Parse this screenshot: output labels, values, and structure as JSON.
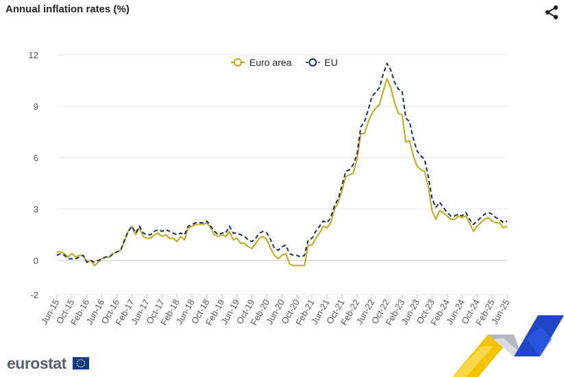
{
  "header": {
    "title": "Annual inflation rates (%)",
    "share_icon": "share-icon"
  },
  "footer": {
    "logo_text": "eurostat",
    "flag_icon": "eu-flag-icon",
    "decoration": "eurostat-ribbon-graphic"
  },
  "colors": {
    "euro_area": "#c7a411",
    "eu": "#0e2f6b",
    "grid": "#e6e6e6",
    "text": "#555555"
  },
  "chart_data": {
    "type": "line",
    "title": "Annual inflation rates (%)",
    "xlabel": "",
    "ylabel": "",
    "ylim": [
      -2,
      12
    ],
    "yticks": [
      -2,
      0,
      3,
      6,
      9,
      12
    ],
    "grid": true,
    "legend_position": "top-center",
    "x": [
      "Jun-15",
      "Jul-15",
      "Aug-15",
      "Sep-15",
      "Oct-15",
      "Nov-15",
      "Dec-15",
      "Jan-16",
      "Feb-16",
      "Mar-16",
      "Apr-16",
      "May-16",
      "Jun-16",
      "Jul-16",
      "Aug-16",
      "Sep-16",
      "Oct-16",
      "Nov-16",
      "Dec-16",
      "Jan-17",
      "Feb-17",
      "Mar-17",
      "Apr-17",
      "May-17",
      "Jun-17",
      "Jul-17",
      "Aug-17",
      "Sep-17",
      "Oct-17",
      "Nov-17",
      "Dec-17",
      "Jan-18",
      "Feb-18",
      "Mar-18",
      "Apr-18",
      "May-18",
      "Jun-18",
      "Jul-18",
      "Aug-18",
      "Sep-18",
      "Oct-18",
      "Nov-18",
      "Dec-18",
      "Jan-19",
      "Feb-19",
      "Mar-19",
      "Apr-19",
      "May-19",
      "Jun-19",
      "Jul-19",
      "Aug-19",
      "Sep-19",
      "Oct-19",
      "Nov-19",
      "Dec-19",
      "Jan-20",
      "Feb-20",
      "Mar-20",
      "Apr-20",
      "May-20",
      "Jun-20",
      "Jul-20",
      "Aug-20",
      "Sep-20",
      "Oct-20",
      "Nov-20",
      "Dec-20",
      "Jan-21",
      "Feb-21",
      "Mar-21",
      "Apr-21",
      "May-21",
      "Jun-21",
      "Jul-21",
      "Aug-21",
      "Sep-21",
      "Oct-21",
      "Nov-21",
      "Dec-21",
      "Jan-22",
      "Feb-22",
      "Mar-22",
      "Apr-22",
      "May-22",
      "Jun-22",
      "Jul-22",
      "Aug-22",
      "Sep-22",
      "Oct-22",
      "Nov-22",
      "Dec-22",
      "Jan-23",
      "Feb-23",
      "Mar-23",
      "Apr-23",
      "May-23",
      "Jun-23",
      "Jul-23",
      "Aug-23",
      "Sep-23",
      "Oct-23",
      "Nov-23",
      "Dec-23",
      "Jan-24",
      "Feb-24",
      "Mar-24",
      "Apr-24",
      "May-24",
      "Jun-24",
      "Jul-24",
      "Aug-24",
      "Sep-24",
      "Oct-24",
      "Nov-24",
      "Dec-24",
      "Jan-25",
      "Feb-25",
      "Mar-25",
      "Apr-25",
      "May-25",
      "Jun-25"
    ],
    "x_tick_labels": [
      "Jun-15",
      "Oct-15",
      "Feb-16",
      "Jun-16",
      "Oct-16",
      "Feb-17",
      "Jun-17",
      "Oct-17",
      "Feb-18",
      "Jun-18",
      "Oct-18",
      "Feb-19",
      "Jun-19",
      "Oct-19",
      "Feb-20",
      "Jun-20",
      "Oct-20",
      "Feb-21",
      "Jun-21",
      "Oct-21",
      "Feb-22",
      "Jun-22",
      "Oct-22",
      "Feb-23",
      "Jun-23",
      "Oct-23",
      "Feb-24",
      "Jun-24",
      "Oct-24",
      "Feb-25",
      "Jun-25"
    ],
    "series": [
      {
        "name": "Euro area",
        "color": "#c7a411",
        "style": "solid",
        "values": [
          0.5,
          0.5,
          0.4,
          0.2,
          0.4,
          0.2,
          0.3,
          0.3,
          -0.1,
          0.0,
          -0.3,
          -0.1,
          0.1,
          0.2,
          0.2,
          0.4,
          0.5,
          0.6,
          1.1,
          1.7,
          2.0,
          1.5,
          1.9,
          1.4,
          1.3,
          1.3,
          1.5,
          1.6,
          1.4,
          1.5,
          1.3,
          1.3,
          1.1,
          1.4,
          1.2,
          1.9,
          2.0,
          2.1,
          2.1,
          2.1,
          2.2,
          1.9,
          1.5,
          1.4,
          1.5,
          1.4,
          1.7,
          1.2,
          1.3,
          1.0,
          1.0,
          0.8,
          0.7,
          1.0,
          1.3,
          1.4,
          1.2,
          0.7,
          0.3,
          0.1,
          0.3,
          0.4,
          -0.2,
          -0.3,
          -0.3,
          -0.3,
          -0.3,
          0.9,
          0.9,
          1.3,
          1.6,
          2.0,
          1.9,
          2.2,
          3.0,
          3.4,
          4.1,
          4.9,
          5.0,
          5.1,
          5.9,
          7.4,
          7.4,
          8.1,
          8.6,
          8.9,
          9.1,
          9.9,
          10.6,
          10.1,
          9.2,
          8.6,
          8.5,
          6.9,
          7.0,
          6.1,
          5.5,
          5.3,
          5.2,
          4.3,
          2.9,
          2.4,
          2.9,
          2.8,
          2.6,
          2.4,
          2.4,
          2.6,
          2.5,
          2.6,
          2.2,
          1.7,
          2.0,
          2.2,
          2.4,
          2.5,
          2.3,
          2.2,
          2.2,
          1.9,
          2.0
        ]
      },
      {
        "name": "EU",
        "color": "#0e2f6b",
        "style": "dashed",
        "values": [
          0.3,
          0.4,
          0.3,
          0.1,
          0.1,
          0.1,
          0.2,
          0.3,
          -0.1,
          0.0,
          -0.1,
          0.0,
          0.1,
          0.2,
          0.2,
          0.4,
          0.5,
          0.6,
          1.2,
          1.7,
          2.0,
          1.6,
          2.0,
          1.6,
          1.5,
          1.5,
          1.7,
          1.8,
          1.7,
          1.8,
          1.7,
          1.6,
          1.5,
          1.6,
          1.5,
          2.0,
          2.1,
          2.2,
          2.2,
          2.2,
          2.3,
          2.0,
          1.7,
          1.5,
          1.6,
          1.6,
          2.0,
          1.6,
          1.6,
          1.5,
          1.4,
          1.2,
          1.1,
          1.3,
          1.6,
          1.7,
          1.6,
          1.2,
          0.7,
          0.6,
          0.8,
          0.9,
          0.4,
          0.3,
          0.3,
          0.2,
          0.3,
          1.2,
          1.3,
          1.7,
          2.0,
          2.3,
          2.2,
          2.5,
          3.2,
          3.6,
          4.4,
          5.2,
          5.3,
          5.6,
          6.2,
          7.8,
          8.1,
          8.8,
          9.6,
          9.8,
          10.1,
          10.9,
          11.5,
          11.1,
          10.4,
          10.0,
          9.9,
          8.3,
          8.1,
          7.1,
          6.4,
          6.1,
          5.9,
          4.9,
          3.6,
          3.1,
          3.4,
          3.1,
          2.8,
          2.6,
          2.6,
          2.7,
          2.6,
          2.8,
          2.4,
          2.1,
          2.3,
          2.5,
          2.7,
          2.8,
          2.7,
          2.5,
          2.4,
          2.2,
          2.3
        ]
      }
    ]
  }
}
